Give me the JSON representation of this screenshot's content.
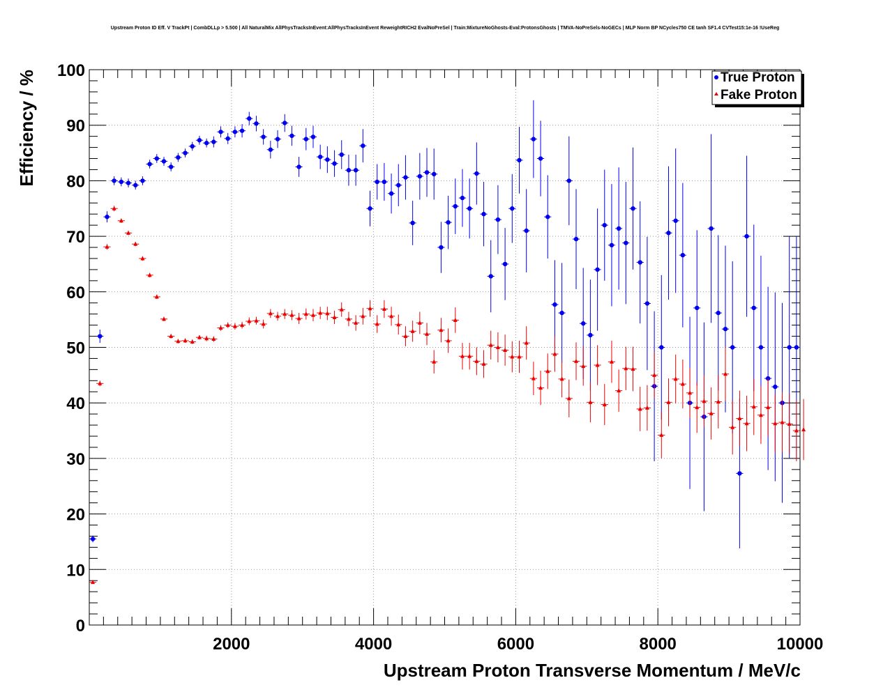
{
  "chart_data": {
    "type": "scatter",
    "title": "Upstream Proton ID Eff. V TrackPt | CombDLLp > 5.500 | All NaturalMix AllPhysTracksInEvent:AllPhysTracksInEvent ReweightRICH2 EvalNoPreSel | Train:MixtureNoGhosts-Eval:ProtonsGhosts | TMVA-NoPreSels-NoGECs | MLP Norm BP NCycles750 CE tanh SF1.4 CVTest15:1e-16 !UseReg",
    "xlabel": "Upstream Proton Transverse Momentum / MeV/c",
    "ylabel": "Efficiency / %",
    "xlim": [
      0,
      10000
    ],
    "ylim": [
      0,
      100
    ],
    "x_ticks": [
      2000,
      4000,
      6000,
      8000,
      10000
    ],
    "y_ticks": [
      0,
      10,
      20,
      30,
      40,
      50,
      60,
      70,
      80,
      90,
      100
    ],
    "grid": true,
    "legend_position": "top-right",
    "series": [
      {
        "name": "True Proton",
        "color": "#0000ee",
        "marker": "circle",
        "x": [
          50,
          150,
          250,
          350,
          450,
          550,
          650,
          750,
          850,
          950,
          1050,
          1150,
          1250,
          1350,
          1450,
          1550,
          1650,
          1750,
          1850,
          1950,
          2050,
          2150,
          2250,
          2350,
          2450,
          2550,
          2650,
          2750,
          2850,
          2950,
          3050,
          3150,
          3250,
          3350,
          3450,
          3550,
          3650,
          3750,
          3850,
          3950,
          4050,
          4150,
          4250,
          4350,
          4450,
          4550,
          4650,
          4750,
          4850,
          4950,
          5050,
          5150,
          5250,
          5350,
          5450,
          5550,
          5650,
          5750,
          5850,
          5950,
          6050,
          6150,
          6250,
          6350,
          6450,
          6550,
          6650,
          6750,
          6850,
          6950,
          7050,
          7150,
          7250,
          7350,
          7450,
          7550,
          7650,
          7750,
          7850,
          7950,
          8050,
          8150,
          8250,
          8350,
          8450,
          8550,
          8650,
          8750,
          8850,
          8950,
          9050,
          9150,
          9250,
          9350,
          9450,
          9550,
          9650,
          9750,
          9850,
          9950
        ],
        "y": [
          15.5,
          52,
          73.5,
          80,
          79.8,
          79.6,
          79.2,
          80,
          83,
          84,
          83.5,
          82.5,
          84.2,
          85,
          86.2,
          87.3,
          86.8,
          87,
          88.8,
          87.6,
          88.8,
          89,
          91.2,
          90.3,
          87.9,
          85.6,
          87.5,
          90.4,
          88.1,
          82.5,
          87.5,
          87.9,
          84.3,
          83.8,
          83.1,
          84.7,
          81.9,
          81.9,
          86.3,
          75,
          79.8,
          79.8,
          77.7,
          79.2,
          80.6,
          72.4,
          80.8,
          81.5,
          81.2,
          68,
          72.5,
          75.4,
          76.9,
          75,
          81.3,
          74,
          62.8,
          73,
          65,
          75,
          83.7,
          71,
          87.5,
          84,
          73.5,
          57.7,
          56.2,
          80,
          69.5,
          54.3,
          52.2,
          64,
          72,
          68.4,
          71.4,
          68.8,
          75,
          65.3,
          57.9,
          43,
          50,
          70.6,
          72.8,
          66.6,
          40,
          57.1,
          37.5,
          71.4,
          56.2,
          53.3,
          50,
          27.3,
          70,
          57.1,
          50,
          44.4,
          42.9,
          40,
          50,
          50
        ],
        "err": [
          0.6,
          1.2,
          1.0,
          0.8,
          0.8,
          0.8,
          0.8,
          0.8,
          0.8,
          0.8,
          0.8,
          0.8,
          0.8,
          0.8,
          0.8,
          0.8,
          0.8,
          1.0,
          1.0,
          1.0,
          1.0,
          1.2,
          1.2,
          1.4,
          1.4,
          1.6,
          1.6,
          1.6,
          1.8,
          1.8,
          2.0,
          2.0,
          2.2,
          2.4,
          2.4,
          2.6,
          2.8,
          2.8,
          3.0,
          3.2,
          3.2,
          3.4,
          3.6,
          3.8,
          4.0,
          4.0,
          4.2,
          4.4,
          4.6,
          4.6,
          4.8,
          5.0,
          5.2,
          5.4,
          5.6,
          5.8,
          6.5,
          6.2,
          6.5,
          6.2,
          6.0,
          7.5,
          7.0,
          6.8,
          7.5,
          8.0,
          9.0,
          8.0,
          9.0,
          10.0,
          10.0,
          11.0,
          10.0,
          11.0,
          11.0,
          11.0,
          11.0,
          11.0,
          12.0,
          13.5,
          13.0,
          12.0,
          13.0,
          13.0,
          15.5,
          14.0,
          17.0,
          17.0,
          14.0,
          15.0,
          15.5,
          13.5,
          14.5,
          15.0,
          16.5,
          16.5,
          17.0,
          18.0,
          20.0,
          20.0
        ]
      },
      {
        "name": "Fake Proton",
        "color": "#ee0000",
        "marker": "triangle",
        "x": [
          50,
          150,
          250,
          350,
          450,
          550,
          650,
          750,
          850,
          950,
          1050,
          1150,
          1250,
          1350,
          1450,
          1550,
          1650,
          1750,
          1850,
          1950,
          2050,
          2150,
          2250,
          2350,
          2450,
          2550,
          2650,
          2750,
          2850,
          2950,
          3050,
          3150,
          3250,
          3350,
          3450,
          3550,
          3650,
          3750,
          3850,
          3950,
          4050,
          4150,
          4250,
          4350,
          4450,
          4550,
          4650,
          4750,
          4850,
          4950,
          5050,
          5150,
          5250,
          5350,
          5450,
          5550,
          5650,
          5750,
          5850,
          5950,
          6050,
          6150,
          6250,
          6350,
          6450,
          6550,
          6650,
          6750,
          6850,
          6950,
          7050,
          7150,
          7250,
          7350,
          7450,
          7550,
          7650,
          7750,
          7850,
          7950,
          8050,
          8150,
          8250,
          8350,
          8450,
          8550,
          8650,
          8750,
          8850,
          8950,
          9050,
          9150,
          9250,
          9350,
          9450,
          9550,
          9650,
          9750,
          9850,
          9950,
          10050
        ],
        "y": [
          7.7,
          43.5,
          68.1,
          75,
          72.8,
          70.6,
          68.6,
          66,
          63,
          59.1,
          55.1,
          52,
          51.1,
          51.2,
          51,
          51.8,
          51.6,
          51.5,
          53.5,
          54,
          53.8,
          54,
          54.7,
          54.8,
          54.2,
          56.1,
          55.6,
          56,
          55.8,
          55.2,
          56,
          55.8,
          56.2,
          56.1,
          55.4,
          56.8,
          55.1,
          54.4,
          55.6,
          57,
          54.2,
          56.9,
          55.6,
          54.1,
          52,
          52.9,
          54.4,
          52.4,
          47.4,
          53.1,
          51.2,
          54.9,
          48.4,
          48.4,
          47.5,
          47,
          50.4,
          50,
          49.5,
          48.3,
          48.3,
          50.8,
          44.4,
          42.7,
          45.7,
          48.8,
          44.3,
          40.8,
          47.5,
          46.6,
          40.1,
          46.8,
          39.7,
          47.4,
          42.2,
          46.2,
          46.1,
          38.9,
          39.1,
          45,
          34.2,
          40.1,
          44.3,
          43.4,
          41.8,
          39.2,
          40.3,
          38.1,
          40.2,
          45.2,
          35.6,
          37.2,
          36.3,
          39.3,
          37.8,
          39.2,
          36.3,
          36.5,
          36.2,
          35,
          35.2
        ],
        "err": [
          0.3,
          0.5,
          0.5,
          0.5,
          0.4,
          0.4,
          0.4,
          0.4,
          0.4,
          0.4,
          0.4,
          0.4,
          0.4,
          0.4,
          0.4,
          0.4,
          0.5,
          0.5,
          0.5,
          0.5,
          0.6,
          0.6,
          0.7,
          0.7,
          0.8,
          0.8,
          0.8,
          0.9,
          0.9,
          1.0,
          1.0,
          1.1,
          1.1,
          1.2,
          1.2,
          1.3,
          1.3,
          1.4,
          1.5,
          1.5,
          1.6,
          1.6,
          1.7,
          1.8,
          1.8,
          1.9,
          2.0,
          2.0,
          2.1,
          2.2,
          2.2,
          2.3,
          2.4,
          2.4,
          2.5,
          2.5,
          2.6,
          2.7,
          2.8,
          2.8,
          2.9,
          3.0,
          3.0,
          3.1,
          3.2,
          3.2,
          3.3,
          3.4,
          3.4,
          3.5,
          3.6,
          3.6,
          3.7,
          3.8,
          3.8,
          3.9,
          4.0,
          4.0,
          4.1,
          4.2,
          4.2,
          4.3,
          4.4,
          4.4,
          4.5,
          4.6,
          4.6,
          4.7,
          4.8,
          4.8,
          4.9,
          5.0,
          5.0,
          5.1,
          5.2,
          5.2,
          5.3,
          5.4,
          5.4,
          5.5,
          5.5
        ]
      }
    ]
  }
}
